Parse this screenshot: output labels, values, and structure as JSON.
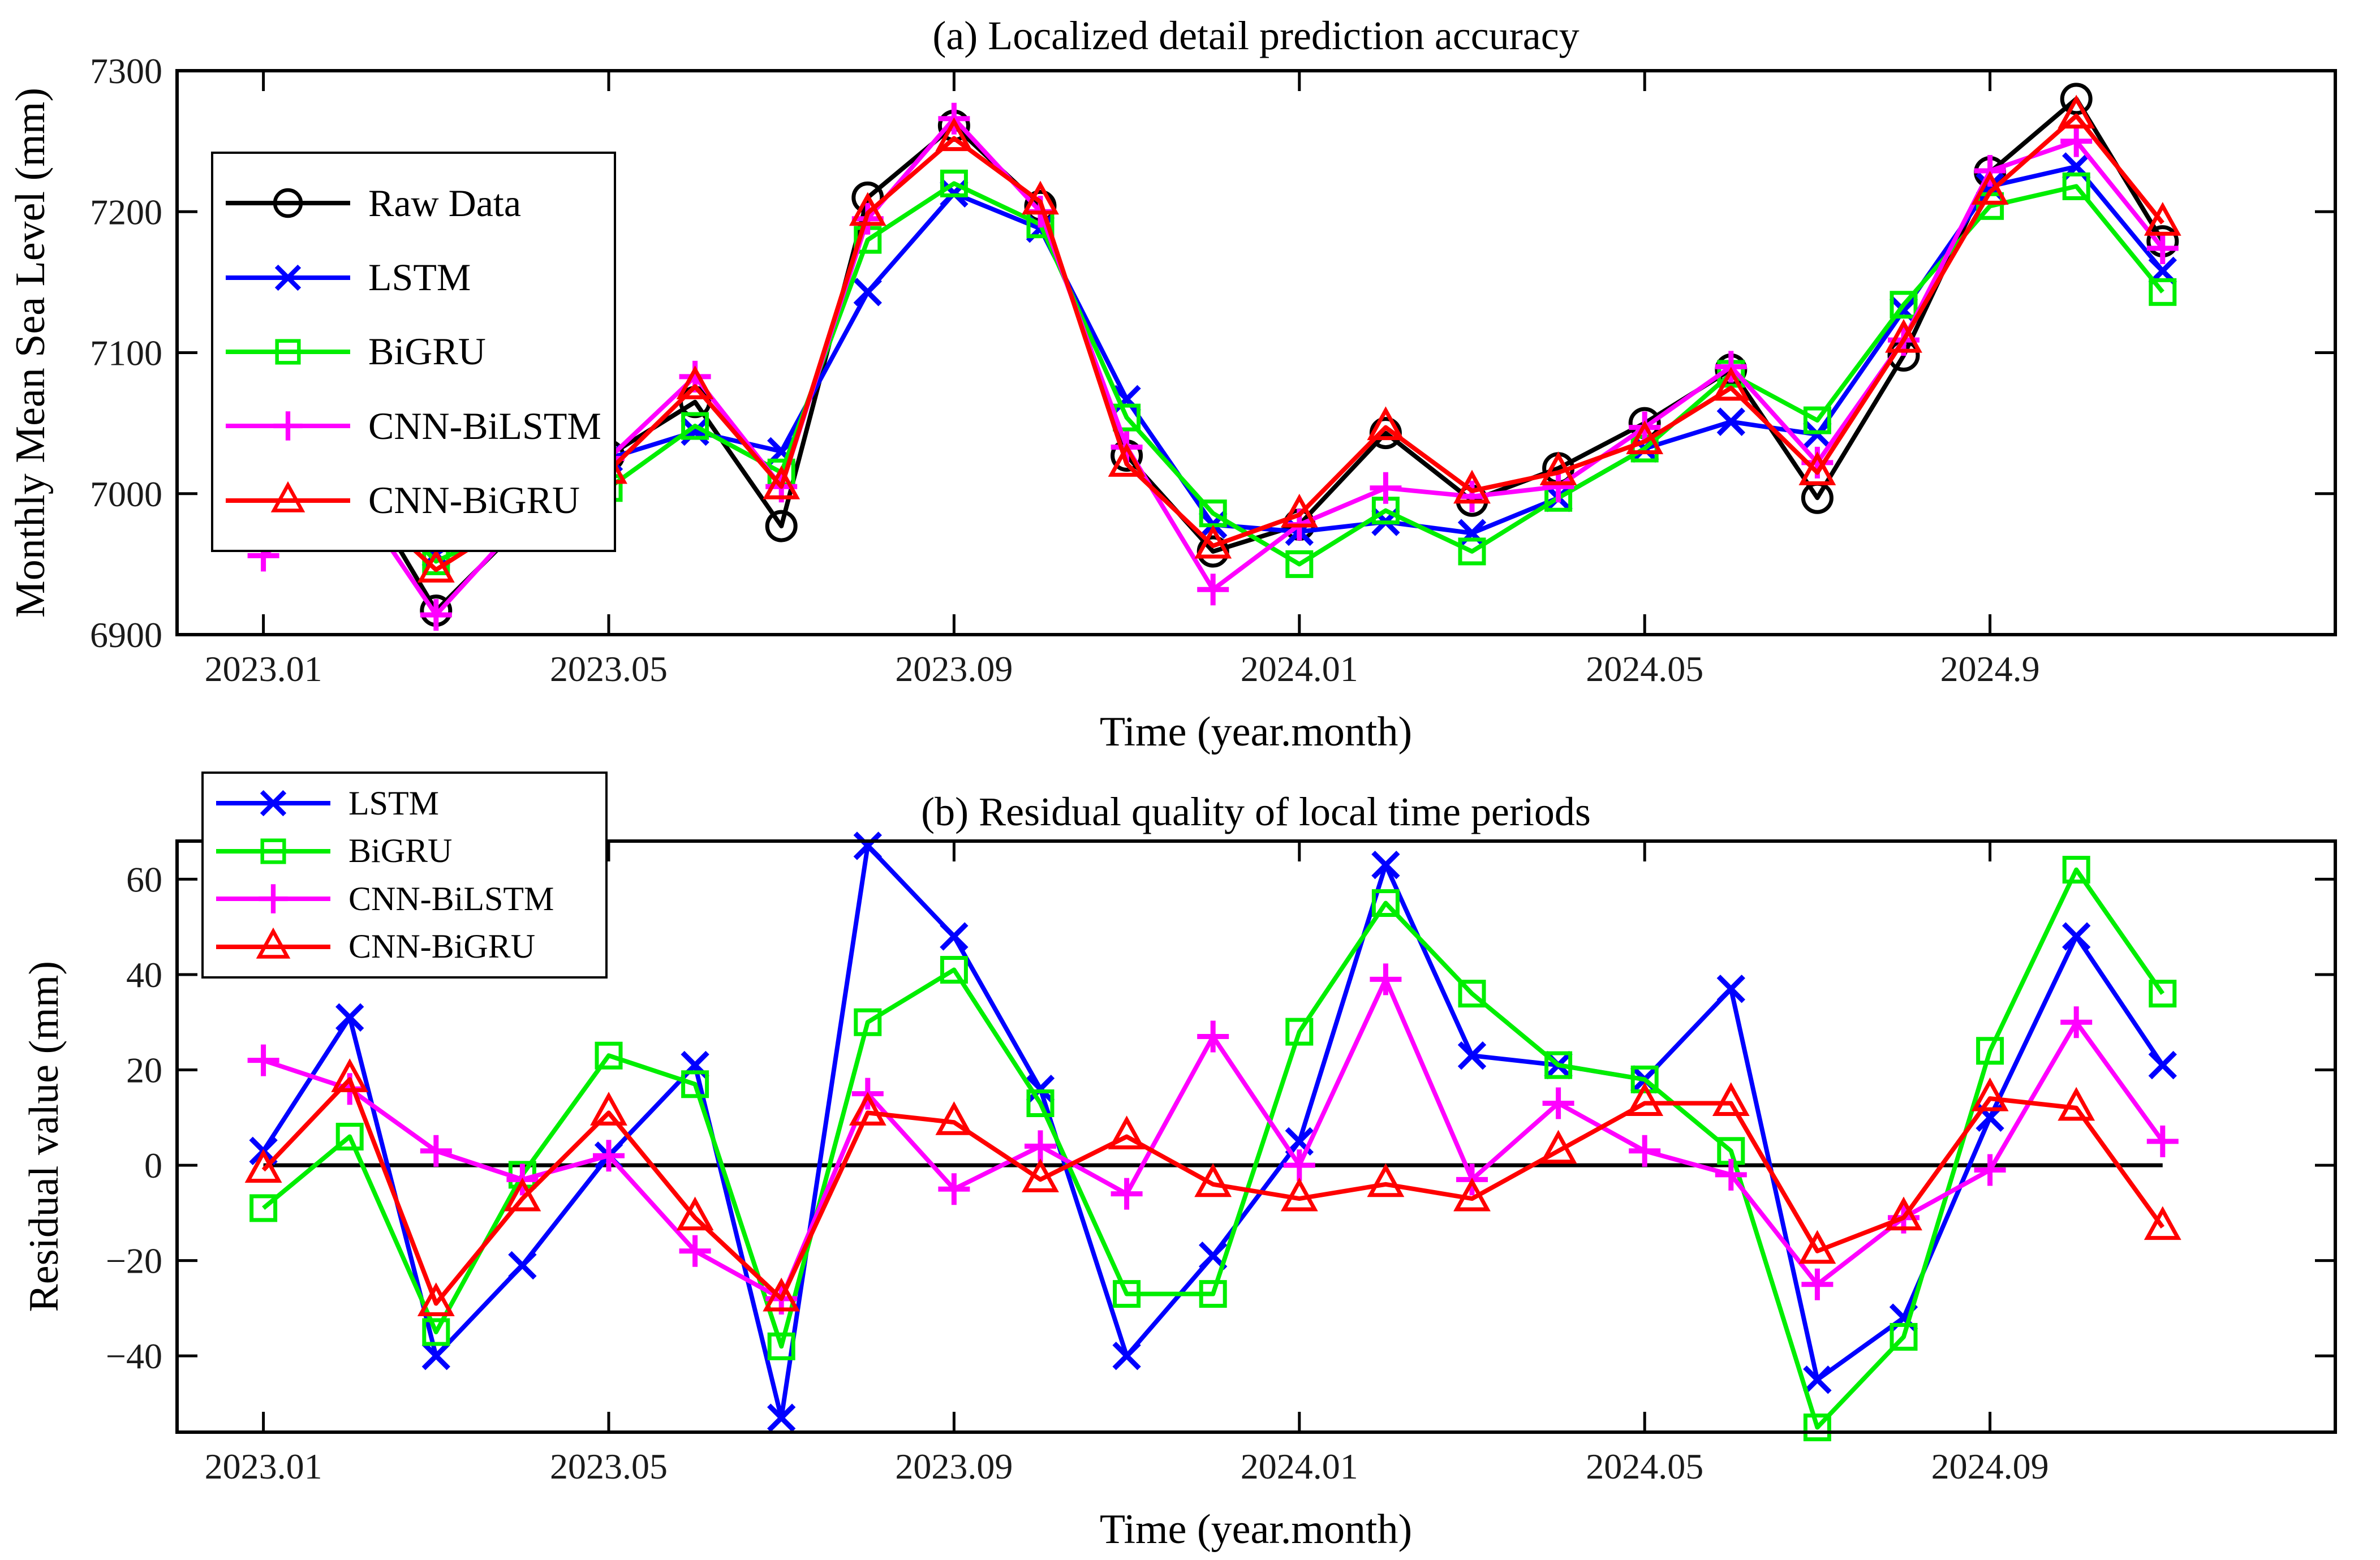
{
  "figure": {
    "background": "#ffffff",
    "axis_color": "#000000",
    "font_note": "serif MATLAB-style figure, two stacked line charts"
  },
  "chart_data": [
    {
      "type": "line",
      "title": "(a) Localized detail prediction accuracy",
      "xlabel": "Time (year.month)",
      "ylabel": "Monthly Mean Sea Level (mm)",
      "grid": false,
      "legend_position": "top-left",
      "xlim_index": [
        -1,
        24
      ],
      "ylim": [
        6900,
        7300
      ],
      "x_months": [
        "2023.01",
        "2023.02",
        "2023.03",
        "2023.04",
        "2023.05",
        "2023.06",
        "2023.07",
        "2023.08",
        "2023.09",
        "2023.10",
        "2023.11",
        "2023.12",
        "2024.01",
        "2024.02",
        "2024.03",
        "2024.04",
        "2024.05",
        "2024.06",
        "2024.07",
        "2024.08",
        "2024.09",
        "2024.10",
        "2024.11"
      ],
      "x_tick_indices": [
        0,
        4,
        8,
        12,
        16,
        20
      ],
      "x_tick_labels": [
        "2023.01",
        "2023.05",
        "2023.09",
        "2024.01",
        "2024.05",
        "2024.9"
      ],
      "y_tick_values": [
        6900,
        7000,
        7100,
        7200,
        7300
      ],
      "y_tick_labels": [
        "6900",
        "7000",
        "7100",
        "7200",
        "7300"
      ],
      "series": [
        {
          "name": "Raw Data",
          "color": "#000000",
          "marker": "circle",
          "values": [
            6978,
            7020,
            6917,
            6978,
            7027,
            7065,
            6977,
            7210,
            7261,
            7204,
            7027,
            6959,
            6978,
            7043,
            6995,
            7018,
            7050,
            7088,
            6997,
            7098,
            7228,
            7280,
            7179
          ]
        },
        {
          "name": "LSTM",
          "color": "#0000ff",
          "marker": "x",
          "values": [
            6975,
            6989,
            6957,
            6999,
            7025,
            7044,
            7030,
            7143,
            7213,
            7188,
            7067,
            6978,
            6973,
            6980,
            6972,
            6997,
            7032,
            7051,
            7042,
            7130,
            7218,
            7232,
            7158
          ]
        },
        {
          "name": "BiGRU",
          "color": "#00ee00",
          "marker": "square",
          "values": [
            6987,
            7014,
            6952,
            6980,
            7004,
            7048,
            7015,
            7180,
            7220,
            7191,
            7054,
            6986,
            6950,
            6988,
            6959,
            6997,
            7032,
            7085,
            7052,
            7134,
            7204,
            7218,
            7143
          ]
        },
        {
          "name": "CNN-BiLSTM",
          "color": "#ff00ff",
          "marker": "plus",
          "values": [
            6956,
            7004,
            6914,
            6981,
            7025,
            7083,
            7005,
            7195,
            7266,
            7200,
            7033,
            6932,
            6978,
            7004,
            6998,
            7005,
            7047,
            7090,
            7022,
            7109,
            7229,
            7250,
            7174
          ]
        },
        {
          "name": "CNN-BiGRU",
          "color": "#ff0000",
          "marker": "triangle",
          "values": [
            6979,
            7002,
            6946,
            6985,
            7016,
            7076,
            7005,
            7199,
            7252,
            7207,
            7021,
            6963,
            6985,
            7047,
            7002,
            7015,
            7037,
            7075,
            7015,
            7109,
            7214,
            7268,
            7192
          ]
        }
      ]
    },
    {
      "type": "line",
      "title": "(b) Residual quality of local time periods",
      "xlabel": "Time (year.month)",
      "ylabel": "Residual value (mm)",
      "grid": false,
      "legend_position": "top-left",
      "zero_line": true,
      "xlim_index": [
        -1,
        24
      ],
      "ylim": [
        -56,
        68
      ],
      "x_months": [
        "2023.01",
        "2023.02",
        "2023.03",
        "2023.04",
        "2023.05",
        "2023.06",
        "2023.07",
        "2023.08",
        "2023.09",
        "2023.10",
        "2023.11",
        "2023.12",
        "2024.01",
        "2024.02",
        "2024.03",
        "2024.04",
        "2024.05",
        "2024.06",
        "2024.07",
        "2024.08",
        "2024.09",
        "2024.10",
        "2024.11"
      ],
      "x_tick_indices": [
        0,
        4,
        8,
        12,
        16,
        20
      ],
      "x_tick_labels": [
        "2023.01",
        "2023.05",
        "2023.09",
        "2024.01",
        "2024.05",
        "2024.09"
      ],
      "y_tick_values": [
        -40,
        -20,
        0,
        20,
        40,
        60
      ],
      "y_tick_labels": [
        "−40",
        "−20",
        "0",
        "20",
        "40",
        "60"
      ],
      "series": [
        {
          "name": "LSTM",
          "color": "#0000ff",
          "marker": "x",
          "values": [
            3,
            31,
            -40,
            -21,
            2,
            21,
            -53,
            67,
            48,
            16,
            -40,
            -19,
            5,
            63,
            23,
            21,
            18,
            37,
            -45,
            -32,
            10,
            48,
            21
          ]
        },
        {
          "name": "BiGRU",
          "color": "#00ee00",
          "marker": "square",
          "values": [
            -9,
            6,
            -35,
            -2,
            23,
            17,
            -38,
            30,
            41,
            13,
            -27,
            -27,
            28,
            55,
            36,
            21,
            18,
            3,
            -55,
            -36,
            24,
            62,
            36
          ]
        },
        {
          "name": "CNN-BiLSTM",
          "color": "#ff00ff",
          "marker": "plus",
          "values": [
            22,
            16,
            3,
            -3,
            2,
            -18,
            -28,
            15,
            -5,
            4,
            -6,
            27,
            0,
            39,
            -3,
            13,
            3,
            -2,
            -25,
            -11,
            -1,
            30,
            5
          ]
        },
        {
          "name": "CNN-BiGRU",
          "color": "#ff0000",
          "marker": "triangle",
          "values": [
            -1,
            18,
            -29,
            -7,
            11,
            -11,
            -28,
            11,
            9,
            -3,
            6,
            -4,
            -7,
            -4,
            -7,
            3,
            13,
            13,
            -18,
            -11,
            14,
            12,
            -13
          ]
        }
      ]
    }
  ]
}
